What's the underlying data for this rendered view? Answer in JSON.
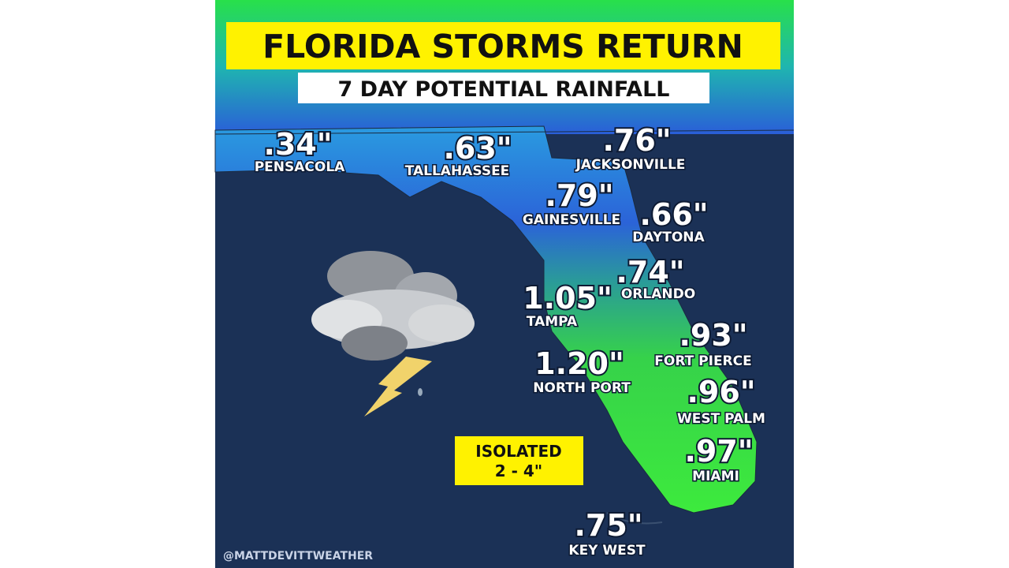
{
  "header": {
    "title": "FLORIDA STORMS RETURN",
    "subtitle": "7 DAY POTENTIAL RAINFALL"
  },
  "cities": [
    {
      "amount": ".34\"",
      "name": "PENSACOLA"
    },
    {
      "amount": ".63\"",
      "name": "TALLAHASSEE"
    },
    {
      "amount": ".76\"",
      "name": "JACKSONVILLE"
    },
    {
      "amount": ".79\"",
      "name": "GAINESVILLE"
    },
    {
      "amount": ".66\"",
      "name": "DAYTONA"
    },
    {
      "amount": ".74\"",
      "name": "ORLANDO"
    },
    {
      "amount": "1.05\"",
      "name": "TAMPA"
    },
    {
      "amount": ".93\"",
      "name": "FORT PIERCE"
    },
    {
      "amount": "1.20\"",
      "name": "NORTH PORT"
    },
    {
      "amount": ".96\"",
      "name": "WEST PALM"
    },
    {
      "amount": ".97\"",
      "name": "MIAMI"
    },
    {
      "amount": ".75\"",
      "name": "KEY WEST"
    }
  ],
  "callout": {
    "lines": [
      "ISOLATED",
      "2 - 4\""
    ]
  },
  "credit": "@MATTDEVITTWEATHER"
}
